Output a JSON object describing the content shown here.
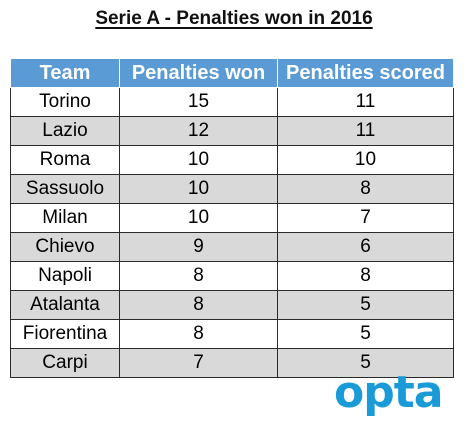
{
  "title": "Serie A - Penalties won in 2016",
  "logo_text": "opta",
  "colors": {
    "header_bg": "#5b9bd5",
    "header_text": "#ffffff",
    "alt_row": "#d9d9d9",
    "logo": "#1a9ad6"
  },
  "chart_data": {
    "type": "table",
    "title": "Serie A - Penalties won in 2016",
    "columns": [
      "Team",
      "Penalties won",
      "Penalties scored"
    ],
    "rows": [
      [
        "Torino",
        15,
        11
      ],
      [
        "Lazio",
        12,
        11
      ],
      [
        "Roma",
        10,
        10
      ],
      [
        "Sassuolo",
        10,
        8
      ],
      [
        "Milan",
        10,
        7
      ],
      [
        "Chievo",
        9,
        6
      ],
      [
        "Napoli",
        8,
        8
      ],
      [
        "Atalanta",
        8,
        5
      ],
      [
        "Fiorentina",
        8,
        5
      ],
      [
        "Carpi",
        7,
        5
      ]
    ]
  }
}
